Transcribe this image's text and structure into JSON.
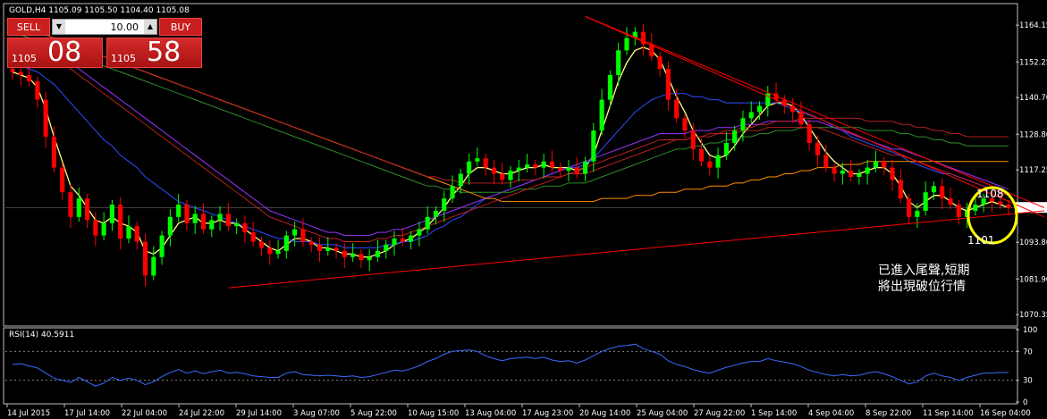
{
  "header": {
    "title": "GOLD,H4  1105.09 1105.50 1104.40 1105.08"
  },
  "trade_panel": {
    "sell_label": "SELL",
    "buy_label": "BUY",
    "lot_value": "10.00",
    "down_icon": "triangle-down",
    "up_icon": "triangle-up",
    "sell_price_small": "1105",
    "sell_price_big": "08",
    "buy_price_small": "1105",
    "buy_price_big": "58"
  },
  "colors": {
    "background": "#000000",
    "price": "#00ff00",
    "bear_candle": "#ff0000",
    "rsi_line": "#3b6bff",
    "circle": "#ffff00",
    "trend_line": "#ff0000",
    "ma_fast": "#ffff80",
    "ma_blue": "#2e4cff",
    "ma_purple": "#9933ff",
    "ma_orange": "#ff8c00",
    "ma_red": "#cc2222",
    "ma_green": "#2e8b2e"
  },
  "annotations": {
    "level_upper": "1108",
    "level_lower": "1101",
    "comment_line1": "已進入尾聲,短期",
    "comment_line2": "將出現破位行情"
  },
  "chart_data": [
    {
      "type": "line",
      "title": "GOLD,H4",
      "ohlc_header": {
        "open": 1105.09,
        "high": 1105.5,
        "low": 1104.4,
        "close": 1105.08
      },
      "y_ticks": [
        "1164.15",
        "1152.25",
        "1140.70",
        "1128.80",
        "1117.25",
        "1105.08",
        "1093.80",
        "1081.90",
        "1070.35"
      ],
      "ylim": [
        1070.35,
        1170
      ],
      "current_price": "1105.08",
      "x_labels": [
        "14 Jul 2015",
        "17 Jul 14:00",
        "22 Jul 04:00",
        "24 Jul 22:00",
        "29 Jul 14:00",
        "3 Aug 07:00",
        "5 Aug 22:00",
        "10 Aug 15:00",
        "13 Aug 04:00",
        "17 Aug 23:00",
        "20 Aug 14:00",
        "25 Aug 04:00",
        "27 Aug 22:00",
        "1 Sep 14:00",
        "4 Sep 04:00",
        "8 Sep 22:00",
        "11 Sep 14:00",
        "16 Sep 04:00"
      ],
      "close": [
        1149,
        1148,
        1146,
        1140,
        1128,
        1118,
        1110,
        1102,
        1108,
        1101,
        1096,
        1100,
        1106,
        1095,
        1099,
        1094,
        1083,
        1089,
        1096,
        1102,
        1106,
        1100,
        1103,
        1098,
        1101,
        1103,
        1099,
        1100,
        1097,
        1094,
        1092,
        1090,
        1091,
        1096,
        1098,
        1094,
        1093,
        1091,
        1092,
        1091,
        1089,
        1090,
        1088,
        1089,
        1091,
        1093,
        1095,
        1094,
        1096,
        1098,
        1102,
        1104,
        1108,
        1112,
        1116,
        1120,
        1121,
        1118,
        1116,
        1114,
        1117,
        1118,
        1119,
        1118,
        1120,
        1118,
        1117,
        1118,
        1116,
        1120,
        1130,
        1140,
        1148,
        1156,
        1160,
        1162,
        1158,
        1154,
        1150,
        1140,
        1134,
        1130,
        1124,
        1120,
        1118,
        1122,
        1126,
        1130,
        1134,
        1136,
        1138,
        1142,
        1140,
        1138,
        1136,
        1132,
        1126,
        1122,
        1118,
        1116,
        1117,
        1115,
        1116,
        1118,
        1120,
        1118,
        1114,
        1108,
        1102,
        1104,
        1110,
        1112,
        1108,
        1106,
        1102,
        1104,
        1106,
        1108,
        1107,
        1106,
        1105
      ],
      "moving_averages": [
        {
          "values": [
            1149,
            1148,
            1147,
            1144,
            1137,
            1128,
            1120,
            1112,
            1109,
            1105,
            1101,
            1100,
            1102,
            1100,
            1099,
            1097,
            1091,
            1090,
            1092,
            1096,
            1100,
            1101,
            1102,
            1100,
            1100,
            1101,
            1100,
            1100,
            1098,
            1096,
            1094,
            1092,
            1091,
            1093,
            1095,
            1095,
            1094,
            1092,
            1092,
            1091,
            1090,
            1090,
            1089,
            1089,
            1090,
            1091,
            1093,
            1094,
            1095,
            1097,
            1099,
            1102,
            1105,
            1109,
            1112,
            1116,
            1118,
            1118,
            1117,
            1116,
            1116,
            1117,
            1118,
            1118,
            1119,
            1118,
            1118,
            1118,
            1117,
            1118,
            1122,
            1130,
            1138,
            1146,
            1152,
            1156,
            1157,
            1156,
            1153,
            1147,
            1141,
            1136,
            1130,
            1126,
            1122,
            1121,
            1122,
            1125,
            1129,
            1132,
            1135,
            1138,
            1139,
            1139,
            1138,
            1135,
            1131,
            1127,
            1123,
            1120,
            1118,
            1116,
            1116,
            1117,
            1118,
            1118,
            1116,
            1112,
            1107,
            1105,
            1107,
            1109,
            1109,
            1107,
            1105,
            1104,
            1105,
            1106,
            1107,
            1106,
            1105
          ]
        },
        {
          "values": [
            1152,
            1151,
            1150,
            1149,
            1147,
            1145,
            1142,
            1139,
            1136,
            1133,
            1130,
            1127,
            1125,
            1122,
            1120,
            1118,
            1115,
            1113,
            1111,
            1109,
            1107,
            1106,
            1105,
            1104,
            1103,
            1102,
            1101,
            1100,
            1099,
            1098,
            1097,
            1096,
            1095,
            1095,
            1094,
            1094,
            1094,
            1093,
            1093,
            1093,
            1092,
            1092,
            1092,
            1092,
            1092,
            1093,
            1093,
            1094,
            1094,
            1095,
            1096,
            1098,
            1099,
            1101,
            1102,
            1104,
            1106,
            1108,
            1109,
            1110,
            1111,
            1112,
            1113,
            1114,
            1115,
            1116,
            1117,
            1118,
            1118,
            1119,
            1121,
            1124,
            1127,
            1130,
            1133,
            1136,
            1138,
            1140,
            1141,
            1142,
            1142,
            1142,
            1141,
            1141,
            1140,
            1140,
            1139,
            1139,
            1139,
            1139,
            1139,
            1139,
            1139,
            1138,
            1137,
            1136,
            1135,
            1134,
            1133,
            1131,
            1130,
            1128,
            1127,
            1126,
            1125,
            1124,
            1123,
            1122,
            1120,
            1119,
            1118,
            1117,
            1116,
            1116,
            1115,
            1114,
            1113,
            1112,
            1111,
            1110,
            1109
          ]
        },
        {
          "values": [
            1160,
            1159,
            1158,
            1157,
            1156,
            1155,
            1154,
            1152,
            1150,
            1148,
            1146,
            1144,
            1142,
            1140,
            1138,
            1136,
            1134,
            1132,
            1130,
            1128,
            1126,
            1124,
            1122,
            1120,
            1118,
            1116,
            1114,
            1112,
            1110,
            1108,
            1106,
            1104,
            1103,
            1102,
            1101,
            1100,
            1099,
            1098,
            1097,
            1097,
            1096,
            1096,
            1096,
            1096,
            1097,
            1097,
            1098,
            1098,
            1099,
            1100,
            1101,
            1102,
            1103,
            1104,
            1105,
            1106,
            1107,
            1108,
            1109,
            1110,
            1111,
            1112,
            1113,
            1114,
            1115,
            1116,
            1117,
            1118,
            1119,
            1120,
            1121,
            1122,
            1123,
            1124,
            1125,
            1126,
            1127,
            1128,
            1129,
            1129,
            1129,
            1129,
            1130,
            1130,
            1130,
            1131,
            1131,
            1131,
            1132,
            1132,
            1132,
            1133,
            1133,
            1133,
            1133,
            1133,
            1133,
            1133,
            1132,
            1131,
            1130,
            1129,
            1128,
            1127,
            1126,
            1125,
            1124,
            1124,
            1123,
            1122,
            1121,
            1120,
            1119,
            1118,
            1117,
            1116,
            1115,
            1114,
            1113,
            1112,
            1111
          ]
        },
        {
          "values": [
            1162,
            1161,
            1160,
            1159,
            1158,
            1157,
            1156,
            1155,
            1154,
            1153,
            1152,
            1151,
            1150,
            1149,
            1148,
            1147,
            1146,
            1145,
            1144,
            1143,
            1142,
            1141,
            1140,
            1139,
            1138,
            1137,
            1136,
            1135,
            1134,
            1133,
            1132,
            1131,
            1130,
            1129,
            1128,
            1127,
            1126,
            1125,
            1124,
            1123,
            1122,
            1121,
            1120,
            1119,
            1118,
            1117,
            1116,
            1115,
            1114,
            1113,
            1112,
            1112,
            1111,
            1111,
            1110,
            1110,
            1110,
            1110,
            1110,
            1110,
            1110,
            1111,
            1111,
            1111,
            1112,
            1112,
            1112,
            1113,
            1113,
            1113,
            1114,
            1115,
            1116,
            1117,
            1118,
            1119,
            1120,
            1121,
            1122,
            1123,
            1124,
            1124,
            1125,
            1125,
            1126,
            1126,
            1127,
            1127,
            1128,
            1128,
            1129,
            1129,
            1130,
            1130,
            1130,
            1131,
            1131,
            1131,
            1131,
            1131,
            1131,
            1131,
            1131,
            1130,
            1130,
            1130,
            1130,
            1129,
            1129,
            1128,
            1128,
            1127,
            1127,
            1126,
            1126,
            1125,
            1125,
            1125,
            1125,
            1125,
            1125
          ]
        },
        {
          "values": [
            1165,
            1164,
            1163,
            1162,
            1161,
            1160,
            1159,
            1158,
            1157,
            1156,
            1155,
            1154,
            1153,
            1152,
            1151,
            1150,
            1149,
            1148,
            1147,
            1146,
            1145,
            1144,
            1143,
            1142,
            1141,
            1140,
            1139,
            1138,
            1137,
            1136,
            1135,
            1134,
            1133,
            1132,
            1131,
            1130,
            1129,
            1128,
            1127,
            1126,
            1125,
            1124,
            1123,
            1122,
            1121,
            1120,
            1119,
            1118,
            1117,
            1116,
            1115,
            1114,
            1113,
            1112,
            1111,
            1110,
            1109,
            1108,
            1108,
            1107,
            1107,
            1107,
            1107,
            1107,
            1107,
            1107,
            1107,
            1107,
            1107,
            1107,
            1107,
            1108,
            1108,
            1108,
            1108,
            1109,
            1109,
            1109,
            1110,
            1110,
            1110,
            1111,
            1111,
            1111,
            1112,
            1112,
            1112,
            1113,
            1113,
            1114,
            1114,
            1115,
            1115,
            1116,
            1116,
            1117,
            1117,
            1118,
            1118,
            1118,
            1119,
            1119,
            1119,
            1120,
            1120,
            1120,
            1120,
            1120,
            1120,
            1120,
            1120,
            1120,
            1120,
            1120,
            1120,
            1120,
            1120,
            1120,
            1120,
            1120,
            1120
          ]
        }
      ],
      "trendlines": [
        {
          "from": [
            69,
            1167
          ],
          "to": [
            120,
            1102
          ]
        },
        {
          "from": [
            69,
            1167
          ],
          "to": [
            120,
            1105
          ]
        },
        {
          "from": [
            26,
            1079
          ],
          "to": [
            120,
            1104
          ]
        }
      ]
    },
    {
      "type": "line",
      "title": "RSI(14) 40.5911",
      "y_ticks": [
        "100",
        "70",
        "30",
        "0"
      ],
      "ylim": [
        0,
        100
      ],
      "levels": [
        70,
        30
      ],
      "values": [
        52,
        53,
        50,
        47,
        40,
        33,
        30,
        27,
        34,
        28,
        22,
        26,
        34,
        30,
        33,
        30,
        24,
        28,
        35,
        41,
        45,
        40,
        43,
        39,
        42,
        44,
        40,
        41,
        39,
        36,
        35,
        34,
        34,
        40,
        42,
        38,
        37,
        36,
        37,
        36,
        35,
        36,
        34,
        35,
        38,
        41,
        44,
        43,
        46,
        50,
        56,
        60,
        66,
        70,
        71,
        72,
        70,
        64,
        60,
        57,
        60,
        61,
        62,
        60,
        62,
        58,
        56,
        57,
        54,
        58,
        64,
        70,
        74,
        77,
        78,
        80,
        74,
        70,
        66,
        57,
        52,
        49,
        45,
        42,
        40,
        44,
        48,
        51,
        54,
        56,
        56,
        60,
        57,
        55,
        53,
        49,
        44,
        41,
        38,
        36,
        38,
        36,
        37,
        40,
        42,
        39,
        35,
        30,
        25,
        28,
        36,
        40,
        36,
        34,
        30,
        34,
        37,
        40,
        40,
        41,
        40.59
      ]
    }
  ]
}
